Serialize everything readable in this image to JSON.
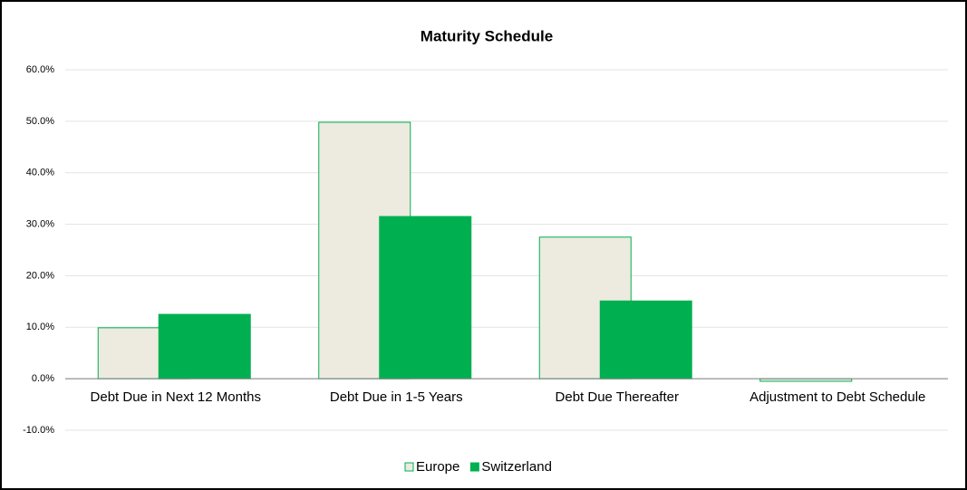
{
  "chart_data": {
    "type": "bar",
    "title": "Maturity Schedule",
    "categories": [
      "Debt Due in Next 12 Months",
      "Debt Due in 1-5 Years",
      "Debt Due Thereafter",
      "Adjustment to Debt Schedule"
    ],
    "series": [
      {
        "name": "Europe",
        "color": "#edeae0",
        "edge": "#00b050",
        "values": [
          9.9,
          49.8,
          27.5,
          -0.5
        ]
      },
      {
        "name": "Switzerland",
        "color": "#00b050",
        "edge": "#00b050",
        "values": [
          12.5,
          31.5,
          15.1,
          0
        ]
      }
    ],
    "ylim": [
      -10,
      60
    ],
    "yticks": [
      {
        "value": -10,
        "label": "-10.0%"
      },
      {
        "value": 0,
        "label": "0.0%"
      },
      {
        "value": 10,
        "label": "10.0%"
      },
      {
        "value": 20,
        "label": "20.0%"
      },
      {
        "value": 30,
        "label": "30.0%"
      },
      {
        "value": 40,
        "label": "40.0%"
      },
      {
        "value": 50,
        "label": "50.0%"
      },
      {
        "value": 60,
        "label": "60.0%"
      }
    ],
    "grid": true,
    "legend": "bottom"
  }
}
